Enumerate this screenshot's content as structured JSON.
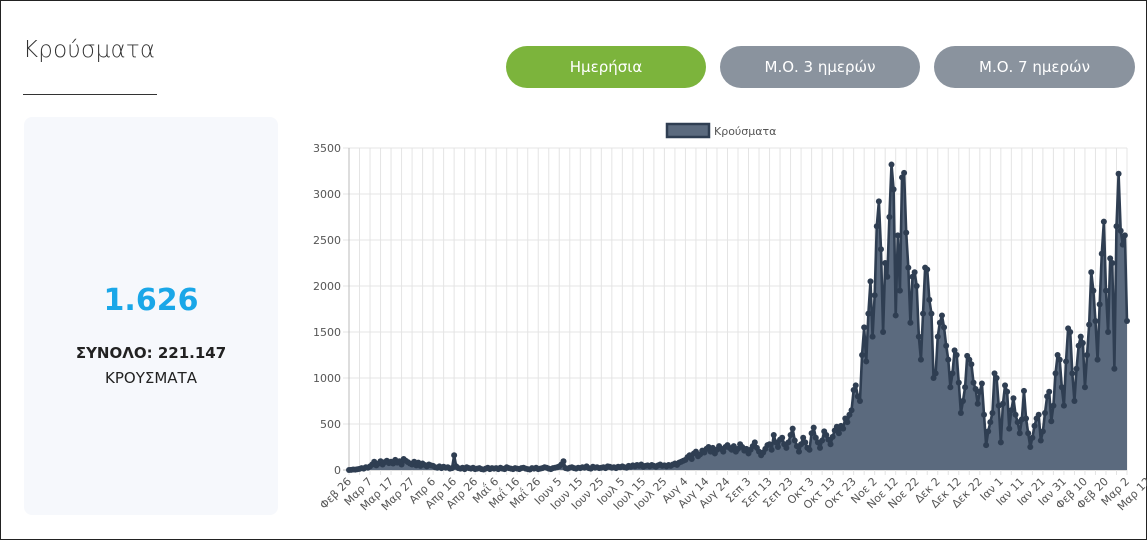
{
  "section": {
    "title": "Κρούσματα"
  },
  "tabs": [
    {
      "label": "Ημερήσια",
      "active": true
    },
    {
      "label": "Μ.Ο. 3 ημερών",
      "active": false
    },
    {
      "label": "Μ.Ο. 7 ημερών",
      "active": false
    }
  ],
  "summary": {
    "latest_value": "1.626",
    "total_label": "ΣΥΝΟΛΟ: 221.147",
    "unit_label": "ΚΡΟΥΣΜΑΤΑ"
  },
  "colors": {
    "accent_green": "#7cb43c",
    "inactive_gray": "#8a939e",
    "number_blue": "#1aa7e8",
    "series_line": "#2f3e52",
    "series_fill": "#5b6a7e"
  },
  "chart_data": {
    "type": "area",
    "series_name": "Κρούσματα",
    "legend_position": "top",
    "grid": true,
    "ylim": [
      0,
      3500
    ],
    "yticks": [
      0,
      500,
      1000,
      1500,
      2000,
      2500,
      3000,
      3500
    ],
    "x_tick_labels": [
      "Φεβ 26",
      "Μαρ 7",
      "Μαρ 17",
      "Μαρ 27",
      "Απρ 6",
      "Απρ 16",
      "Απρ 26",
      "Μαΐ 6",
      "Μαΐ 16",
      "Μαΐ 26",
      "Ιουν 5",
      "Ιουν 15",
      "Ιουν 25",
      "Ιουλ 5",
      "Ιουλ 15",
      "Ιουλ 25",
      "Αυγ 4",
      "Αυγ 14",
      "Αυγ 24",
      "Σεπ 3",
      "Σεπ 13",
      "Σεπ 23",
      "Οκτ 3",
      "Οκτ 13",
      "Οκτ 23",
      "Νοε 2",
      "Νοε 12",
      "Νοε 22",
      "Δεκ 2",
      "Δεκ 12",
      "Δεκ 22",
      "Ιαν 1",
      "Ιαν 11",
      "Ιαν 21",
      "Ιαν 31",
      "Φεβ 10",
      "Φεβ 20",
      "Μαρ 2",
      "Μαρ 12"
    ],
    "approx_daily_values_by_10day_block": [
      [
        0,
        2,
        5,
        4,
        8,
        12,
        20,
        15,
        30,
        25
      ],
      [
        40,
        60,
        90,
        50,
        70,
        95,
        60,
        85,
        100,
        75
      ],
      [
        90,
        70,
        110,
        80,
        95,
        60,
        120,
        100,
        85,
        70
      ],
      [
        60,
        90,
        50,
        80,
        45,
        70,
        55,
        40,
        60,
        50
      ],
      [
        45,
        30,
        25,
        40,
        20,
        35,
        25,
        30,
        15,
        20
      ],
      [
        160,
        40,
        20,
        15,
        25,
        10,
        30,
        20,
        15,
        25
      ],
      [
        10,
        15,
        20,
        10,
        5,
        15,
        25,
        10,
        20,
        15
      ],
      [
        20,
        10,
        25,
        15,
        10,
        30,
        20,
        15,
        10,
        20
      ],
      [
        15,
        10,
        20,
        25,
        15,
        10,
        5,
        20,
        15,
        25
      ],
      [
        10,
        15,
        20,
        30,
        25,
        15,
        10,
        20,
        25,
        30
      ],
      [
        40,
        60,
        95,
        20,
        15,
        25,
        30,
        20,
        15,
        25
      ],
      [
        20,
        30,
        25,
        40,
        20,
        15,
        35,
        25,
        30,
        20
      ],
      [
        25,
        30,
        20,
        40,
        35,
        25,
        30,
        20,
        35,
        30
      ],
      [
        40,
        30,
        25,
        45,
        35,
        50,
        40,
        55,
        45,
        60
      ],
      [
        35,
        45,
        50,
        40,
        55,
        45,
        35,
        50,
        60,
        45
      ],
      [
        50,
        40,
        55,
        45,
        60,
        70,
        55,
        80,
        90,
        100
      ],
      [
        110,
        140,
        160,
        120,
        180,
        200,
        150,
        170,
        210,
        190
      ],
      [
        230,
        250,
        200,
        240,
        180,
        220,
        260,
        230,
        200,
        250
      ],
      [
        270,
        240,
        220,
        260,
        200,
        230,
        280,
        250,
        210,
        230
      ],
      [
        180,
        220,
        260,
        300,
        240,
        200,
        160,
        190,
        230,
        270
      ],
      [
        280,
        220,
        380,
        300,
        250,
        330,
        350,
        280,
        240,
        300
      ],
      [
        380,
        450,
        320,
        260,
        200,
        280,
        350,
        300,
        240,
        220
      ],
      [
        400,
        460,
        350,
        300,
        240,
        320,
        420,
        380,
        330,
        280
      ],
      [
        360,
        430,
        470,
        400,
        480,
        450,
        560,
        520,
        600,
        650
      ],
      [
        870,
        920,
        800,
        750,
        1250,
        1550,
        1180,
        1700,
        2050,
        1450
      ],
      [
        1900,
        2650,
        2920,
        2400,
        1500,
        2250,
        2100,
        2750,
        3320,
        3050
      ],
      [
        1680,
        2550,
        1950,
        3180,
        3230,
        2580,
        2200,
        1600,
        2100,
        2150
      ],
      [
        2000,
        1450,
        1200,
        1700,
        2200,
        2180,
        1850,
        1700,
        1000,
        1050
      ],
      [
        1450,
        1600,
        1680,
        1550,
        1350,
        1200,
        900,
        1050,
        1300,
        1250
      ],
      [
        950,
        620,
        750,
        900,
        1240,
        1200,
        1150,
        950,
        880,
        720
      ],
      [
        850,
        940,
        600,
        270,
        420,
        520,
        620,
        1050,
        1000,
        700
      ],
      [
        300,
        720,
        920,
        850,
        450,
        650,
        780,
        600,
        520,
        400
      ],
      [
        550,
        860,
        560,
        400,
        250,
        350,
        480,
        560,
        600,
        320
      ],
      [
        420,
        620,
        800,
        850,
        530,
        700,
        1050,
        1250,
        1200,
        900
      ],
      [
        700,
        1180,
        1540,
        1500,
        1050,
        750,
        1100,
        1350,
        1450,
        1380
      ],
      [
        900,
        1250,
        1580,
        2150,
        1950,
        1620,
        1200,
        1800,
        2350,
        2700
      ],
      [
        1950,
        1500,
        2300,
        2250,
        1100,
        2650,
        3220,
        2600,
        2450,
        2550
      ],
      [
        1620
      ]
    ]
  }
}
